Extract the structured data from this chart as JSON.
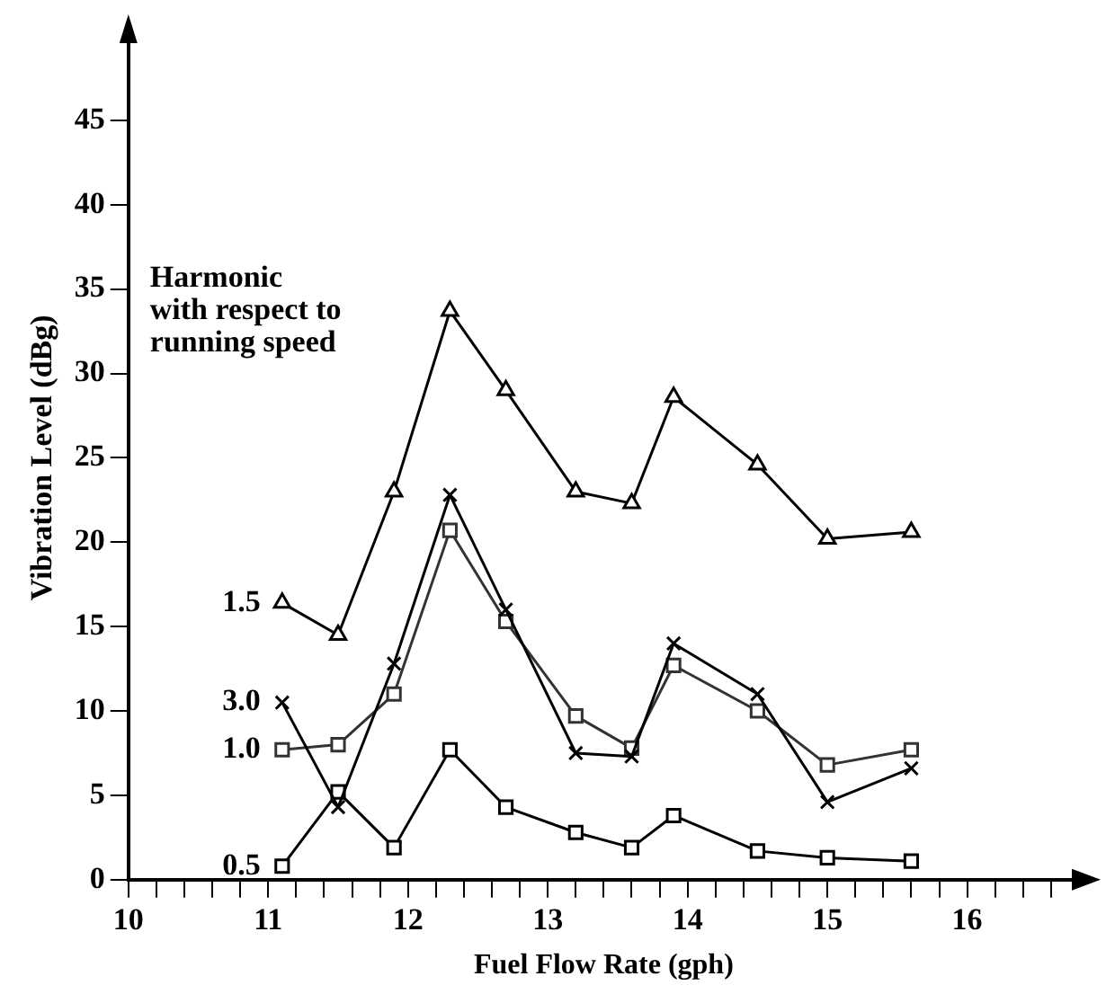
{
  "chart_data": {
    "type": "line",
    "xlabel": "Fuel Flow Rate (gph)",
    "ylabel": "Vibration Level (dBg)",
    "legend_title": "Harmonic\nwith respect to\nrunning speed",
    "x": [
      11.1,
      11.5,
      11.9,
      12.3,
      12.7,
      13.2,
      13.6,
      13.9,
      14.5,
      15.0,
      15.6
    ],
    "series": [
      {
        "name": "1.5",
        "color": "#000000",
        "marker": "triangle",
        "values": [
          16.4,
          14.5,
          23,
          33.7,
          29,
          23,
          22.3,
          28.6,
          24.6,
          20.2,
          20.6
        ]
      },
      {
        "name": "3.0",
        "color": "#000000",
        "marker": "cross",
        "values": [
          10.5,
          4.3,
          12.8,
          22.8,
          16,
          7.5,
          7.3,
          14,
          11,
          4.6,
          6.6
        ]
      },
      {
        "name": "1.0",
        "color": "#333333",
        "marker": "square",
        "values": [
          7.7,
          8,
          11,
          20.7,
          15.3,
          9.7,
          7.8,
          12.7,
          10,
          6.8,
          7.7
        ]
      },
      {
        "name": "0.5",
        "color": "#000000",
        "marker": "square",
        "values": [
          0.8,
          5.2,
          1.9,
          7.7,
          4.3,
          2.8,
          1.9,
          3.8,
          1.7,
          1.3,
          1.1
        ]
      }
    ],
    "xlim": [
      10,
      16.8
    ],
    "ylim": [
      0,
      50
    ],
    "xticks": [
      10,
      {
        "value": 10.2,
        "label": null
      },
      {
        "value": 10.4,
        "label": null
      },
      {
        "value": 10.6,
        "label": null
      },
      {
        "value": 10.8,
        "label": null
      },
      11,
      {
        "value": 11.2,
        "label": null
      },
      {
        "value": 11.4,
        "label": null
      },
      {
        "value": 11.6,
        "label": null
      },
      {
        "value": 11.8,
        "label": null
      },
      12,
      {
        "value": 12.2,
        "label": null
      },
      {
        "value": 12.4,
        "label": null
      },
      {
        "value": 12.6,
        "label": null
      },
      {
        "value": 12.8,
        "label": null
      },
      13,
      {
        "value": 13.2,
        "label": null
      },
      {
        "value": 13.4,
        "label": null
      },
      {
        "value": 13.6,
        "label": null
      },
      {
        "value": 13.8,
        "label": null
      },
      14,
      {
        "value": 14.2,
        "label": null
      },
      {
        "value": 14.4,
        "label": null
      },
      {
        "value": 14.6,
        "label": null
      },
      {
        "value": 14.8,
        "label": null
      },
      15,
      {
        "value": 15.2,
        "label": null
      },
      {
        "value": 15.4,
        "label": null
      },
      {
        "value": 15.6,
        "label": null
      },
      {
        "value": 15.8,
        "label": null
      },
      16,
      {
        "value": 16.2,
        "label": null
      },
      {
        "value": 16.4,
        "label": null
      },
      {
        "value": 16.6,
        "label": null
      }
    ],
    "yticks": [
      0,
      5,
      10,
      15,
      20,
      25,
      30,
      35,
      40,
      45
    ],
    "grid": false,
    "legend": false
  }
}
